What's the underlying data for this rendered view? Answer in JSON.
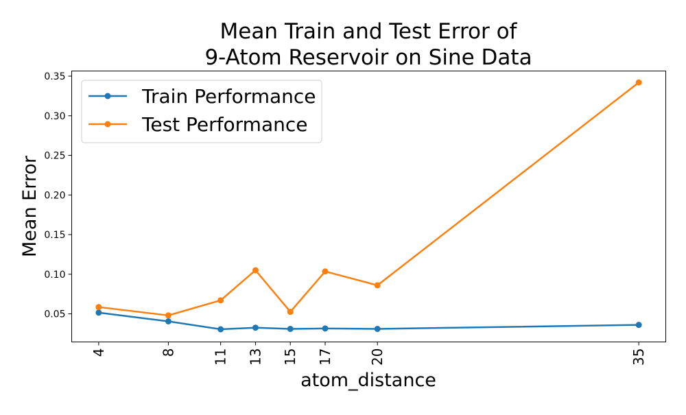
{
  "chart_data": {
    "type": "line",
    "title_lines": [
      "Mean Train and Test Error of",
      "9-Atom Reservoir on Sine Data"
    ],
    "xlabel": "atom_distance",
    "ylabel": "Mean Error",
    "x": [
      4,
      8,
      11,
      13,
      15,
      17,
      20,
      35
    ],
    "x_tick_labels": [
      "4",
      "8",
      "11",
      "13",
      "15",
      "17",
      "20",
      "35"
    ],
    "y_ticks": [
      0.05,
      0.1,
      0.15,
      0.2,
      0.25,
      0.3,
      0.35
    ],
    "y_tick_labels": [
      "0.05",
      "0.10",
      "0.15",
      "0.20",
      "0.25",
      "0.30",
      "0.35"
    ],
    "xlim": [
      2.45,
      36.55
    ],
    "ylim": [
      0.0145,
      0.3565
    ],
    "grid": false,
    "legend_position": "top-left",
    "series": [
      {
        "name": "Train Performance",
        "color": "#1f77b4",
        "values": [
          0.0515,
          0.0405,
          0.0305,
          0.0325,
          0.031,
          0.0315,
          0.031,
          0.036
        ]
      },
      {
        "name": "Test Performance",
        "color": "#ff7f0e",
        "values": [
          0.0585,
          0.048,
          0.067,
          0.105,
          0.0525,
          0.1035,
          0.086,
          0.342
        ]
      }
    ]
  }
}
